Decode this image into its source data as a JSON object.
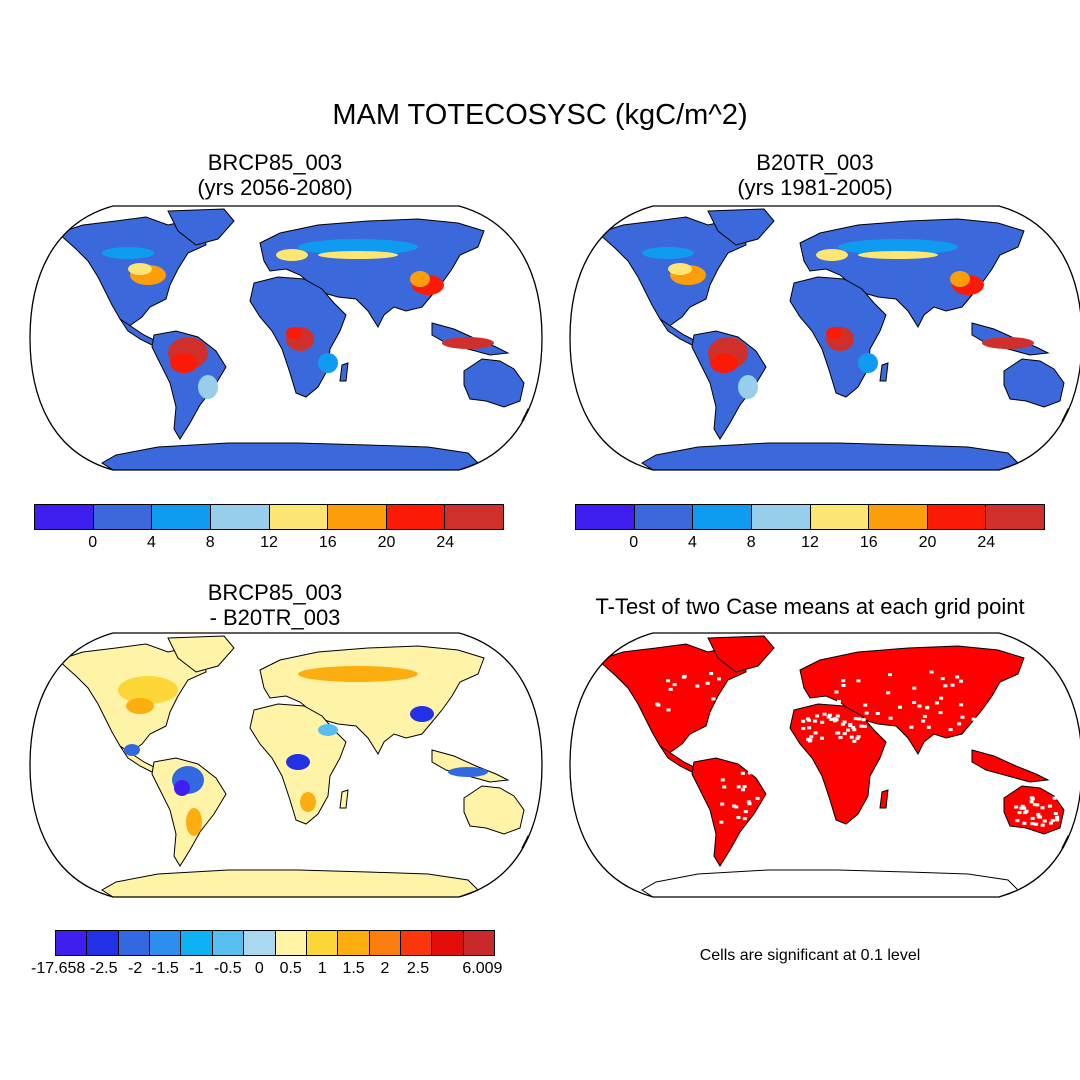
{
  "figure": {
    "title": "MAM TOTECOSYSC (kgC/m^2)"
  },
  "panels": [
    {
      "id": "top-left",
      "title_line1": "BRCP85_003",
      "title_line2": "(yrs 2056-2080)"
    },
    {
      "id": "top-right",
      "title_line1": "B20TR_003",
      "title_line2": "(yrs 1981-2005)"
    },
    {
      "id": "bottom-left",
      "title_line1": "BRCP85_003",
      "title_line2": "- B20TR_003"
    },
    {
      "id": "bottom-right",
      "title_line1": "T-Test of two Case means at each grid point",
      "note": "Cells are significant at 0.1 level"
    }
  ],
  "colorbar_abs": {
    "colors": [
      "#3f1ff0",
      "#3b69dc",
      "#0f9cf0",
      "#96ceec",
      "#fbe673",
      "#fb9e09",
      "#fb1a06",
      "#d0302c"
    ],
    "labels": [
      "0",
      "4",
      "8",
      "12",
      "16",
      "20",
      "24"
    ]
  },
  "colorbar_diff": {
    "colors": [
      "#3f1ff0",
      "#2230e6",
      "#3369e0",
      "#2e8ef0",
      "#0eb1f2",
      "#58bdef",
      "#a9d9f0",
      "#fff3a8",
      "#fcd637",
      "#fcad0f",
      "#fb7c0f",
      "#fa360c",
      "#e30d0d",
      "#c8292b"
    ],
    "labels": [
      "-17.658",
      "-2.5",
      "-2",
      "-1.5",
      "-1",
      "-0.5",
      "0",
      "0.5",
      "1",
      "1.5",
      "2",
      "2.5",
      "6.009"
    ]
  },
  "ttest": {
    "significant_color": "#ff0000"
  }
}
